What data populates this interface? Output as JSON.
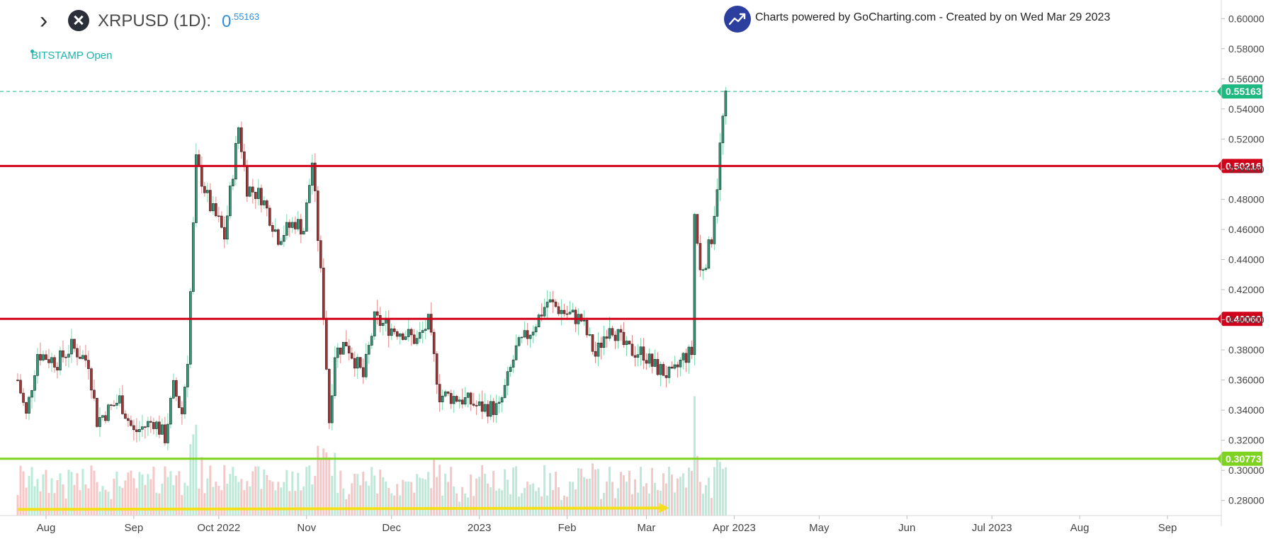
{
  "header": {
    "symbol": "XRPUSD (1D):",
    "price_main": "0",
    "price_sup": ".55163",
    "exchange_label": "BITSTAMP Open",
    "powered_by": "Charts powered by GoCharting.com - Created by  on Wed Mar 29 2023"
  },
  "icons": {
    "expand": "chevron-right-icon",
    "symbol": "xrp-logo-icon",
    "brand": "gocharting-logo-icon"
  },
  "colors": {
    "up": "#26a17b",
    "down": "#b03030",
    "support_resistance": "#d0021b",
    "support_low": "#7ed321",
    "last_price": "#1eb980",
    "arrow": "#f4e01a",
    "volume_up": "#a8e6cf",
    "volume_down": "#f7b6b6"
  },
  "chart_data": {
    "type": "candlestick",
    "ylim": [
      0.27,
      0.61
    ],
    "y_ticks": [
      "0.28000",
      "0.30000",
      "0.32000",
      "0.34000",
      "0.36000",
      "0.38000",
      "0.40000",
      "0.42000",
      "0.44000",
      "0.46000",
      "0.48000",
      "0.50000",
      "0.52000",
      "0.54000",
      "0.56000",
      "0.58000",
      "0.60000"
    ],
    "x_ticks": [
      "Aug",
      "Sep",
      "Oct 2022",
      "Nov",
      "Dec",
      "2023",
      "Feb",
      "Mar",
      "Apr 2023",
      "May",
      "Jun",
      "Jul 2023",
      "Aug",
      "Sep"
    ],
    "x_tick_dates": [
      "2022-08-01",
      "2022-09-01",
      "2022-10-01",
      "2022-11-01",
      "2022-12-01",
      "2023-01-01",
      "2023-02-01",
      "2023-03-01",
      "2023-04-01",
      "2023-05-01",
      "2023-06-01",
      "2023-07-01",
      "2023-08-01",
      "2023-09-01"
    ],
    "date_range": [
      "2022-07-22",
      "2023-09-20"
    ],
    "levels": [
      {
        "label": "0.50216",
        "value": 0.50216,
        "color": "#d0021b"
      },
      {
        "label": "0.40060",
        "value": 0.4006,
        "color": "#d0021b"
      },
      {
        "label": "0.30773",
        "value": 0.30773,
        "color": "#7ed321"
      }
    ],
    "last_price": {
      "label": "0.55163",
      "value": 0.55163
    },
    "arrow": {
      "from": "2022-07-22",
      "to": "2023-03-09",
      "value": 0.275
    },
    "anchors": [
      {
        "date": "2022-07-22",
        "close": 0.36
      },
      {
        "date": "2022-07-25",
        "close": 0.336
      },
      {
        "date": "2022-07-29",
        "close": 0.378
      },
      {
        "date": "2022-08-05",
        "close": 0.372
      },
      {
        "date": "2022-08-10",
        "close": 0.382
      },
      {
        "date": "2022-08-16",
        "close": 0.372
      },
      {
        "date": "2022-08-19",
        "close": 0.333
      },
      {
        "date": "2022-08-27",
        "close": 0.347
      },
      {
        "date": "2022-09-01",
        "close": 0.325
      },
      {
        "date": "2022-09-08",
        "close": 0.333
      },
      {
        "date": "2022-09-12",
        "close": 0.322
      },
      {
        "date": "2022-09-15",
        "close": 0.355
      },
      {
        "date": "2022-09-18",
        "close": 0.338
      },
      {
        "date": "2022-09-20",
        "close": 0.375
      },
      {
        "date": "2022-09-23",
        "close": 0.505
      },
      {
        "date": "2022-09-28",
        "close": 0.475
      },
      {
        "date": "2022-10-01",
        "close": 0.465
      },
      {
        "date": "2022-10-03",
        "close": 0.455
      },
      {
        "date": "2022-10-08",
        "close": 0.528
      },
      {
        "date": "2022-10-11",
        "close": 0.488
      },
      {
        "date": "2022-10-16",
        "close": 0.482
      },
      {
        "date": "2022-10-22",
        "close": 0.455
      },
      {
        "date": "2022-10-28",
        "close": 0.465
      },
      {
        "date": "2022-10-31",
        "close": 0.46
      },
      {
        "date": "2022-11-03",
        "close": 0.505
      },
      {
        "date": "2022-11-07",
        "close": 0.405
      },
      {
        "date": "2022-11-09",
        "close": 0.333
      },
      {
        "date": "2022-11-11",
        "close": 0.378
      },
      {
        "date": "2022-11-15",
        "close": 0.385
      },
      {
        "date": "2022-11-21",
        "close": 0.362
      },
      {
        "date": "2022-11-25",
        "close": 0.4
      },
      {
        "date": "2022-11-30",
        "close": 0.395
      },
      {
        "date": "2022-12-05",
        "close": 0.392
      },
      {
        "date": "2022-12-10",
        "close": 0.386
      },
      {
        "date": "2022-12-14",
        "close": 0.398
      },
      {
        "date": "2022-12-18",
        "close": 0.35
      },
      {
        "date": "2022-12-25",
        "close": 0.348
      },
      {
        "date": "2022-12-29",
        "close": 0.345
      },
      {
        "date": "2023-01-01",
        "close": 0.342
      },
      {
        "date": "2023-01-08",
        "close": 0.341
      },
      {
        "date": "2023-01-14",
        "close": 0.38
      },
      {
        "date": "2023-01-20",
        "close": 0.395
      },
      {
        "date": "2023-01-25",
        "close": 0.412
      },
      {
        "date": "2023-01-31",
        "close": 0.405
      },
      {
        "date": "2023-02-06",
        "close": 0.4
      },
      {
        "date": "2023-02-11",
        "close": 0.376
      },
      {
        "date": "2023-02-16",
        "close": 0.398
      },
      {
        "date": "2023-02-22",
        "close": 0.38
      },
      {
        "date": "2023-02-28",
        "close": 0.378
      },
      {
        "date": "2023-03-03",
        "close": 0.37
      },
      {
        "date": "2023-03-10",
        "close": 0.362
      },
      {
        "date": "2023-03-14",
        "close": 0.375
      },
      {
        "date": "2023-03-17",
        "close": 0.378
      },
      {
        "date": "2023-03-18",
        "close": 0.47
      },
      {
        "date": "2023-03-20",
        "close": 0.432
      },
      {
        "date": "2023-03-22",
        "close": 0.44
      },
      {
        "date": "2023-03-24",
        "close": 0.455
      },
      {
        "date": "2023-03-26",
        "close": 0.49
      },
      {
        "date": "2023-03-27",
        "close": 0.515
      },
      {
        "date": "2023-03-29",
        "close": 0.552
      }
    ]
  }
}
